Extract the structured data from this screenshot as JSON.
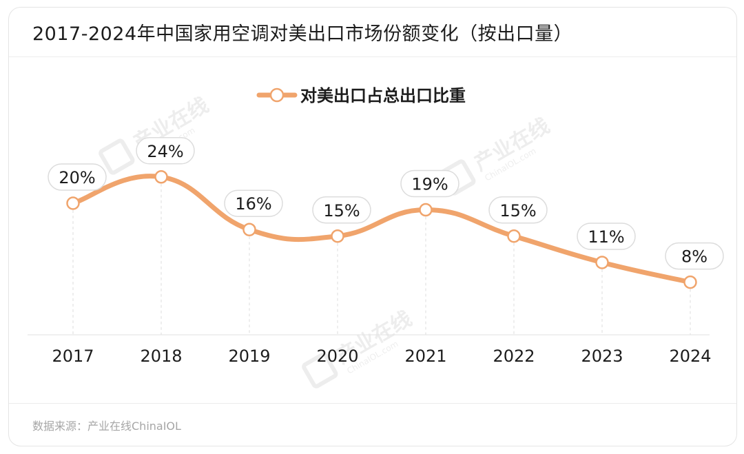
{
  "title": "2017-2024年中国家用空调对美出口市场份额变化（按出口量）",
  "source": "数据来源：产业在线ChinaIOL",
  "watermark": {
    "cn": "产业在线",
    "en": "ChinaIOL.com"
  },
  "colors": {
    "line": "#f0a46c",
    "marker_fill": "#ffffff",
    "label_border": "#dcdcdc",
    "grid": "#dedede",
    "text": "#1c1c1c"
  },
  "chart_data": {
    "type": "line",
    "title": "2017-2024年中国家用空调对美出口市场份额变化（按出口量）",
    "xlabel": "",
    "ylabel": "",
    "categories": [
      "2017",
      "2018",
      "2019",
      "2020",
      "2021",
      "2022",
      "2023",
      "2024"
    ],
    "series": [
      {
        "name": "对美出口占总出口比重",
        "values": [
          20,
          24,
          16,
          15,
          19,
          15,
          11,
          8
        ],
        "labels": [
          "20%",
          "24%",
          "16%",
          "15%",
          "19%",
          "15%",
          "11%",
          "8%"
        ]
      }
    ],
    "ylim": [
      0,
      45
    ],
    "grid": false,
    "legend": "top-center"
  }
}
